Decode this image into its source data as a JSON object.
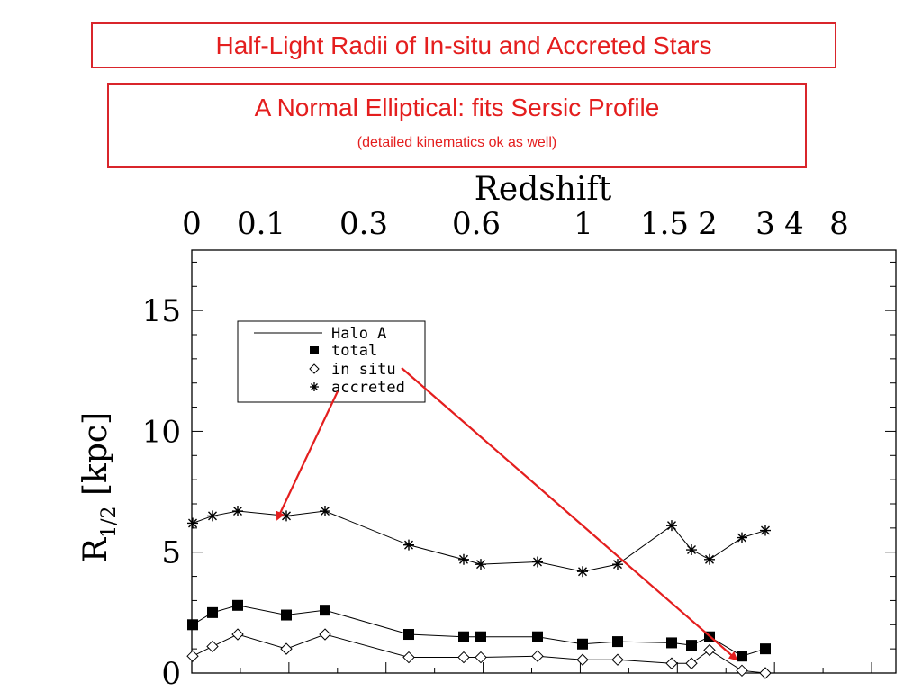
{
  "slide": {
    "title": "Half-Light Radii of In-situ and Accreted Stars",
    "subtitle": "A Normal Elliptical: fits Sersic Profile",
    "note": "(detailed kinematics ok as well)",
    "accent_color": "#e41e1e"
  },
  "chart_data": {
    "type": "line",
    "top_axis_label": "Redshift",
    "top_ticks": [
      "0",
      "0.1",
      "0.3",
      "0.6",
      "1",
      "1.5",
      "2",
      "3",
      "4",
      "8"
    ],
    "ylabel": "R1/2 [kpc]",
    "ylim": [
      0,
      17.5
    ],
    "yticks": [
      0,
      5,
      10,
      15
    ],
    "legend": {
      "placement": "upper-left",
      "entries": [
        {
          "symbol": "line",
          "label": "Halo A"
        },
        {
          "symbol": "filled-square",
          "label": "total"
        },
        {
          "symbol": "open-diamond",
          "label": "in situ"
        },
        {
          "symbol": "asterisk",
          "label": "accreted"
        }
      ]
    },
    "redshift": [
      0,
      0.03,
      0.07,
      0.14,
      0.22,
      0.43,
      0.57,
      0.62,
      0.8,
      1.08,
      1.3,
      1.58,
      1.8,
      2.05,
      2.6,
      3.1
    ],
    "series": [
      {
        "name": "accreted",
        "marker": "asterisk",
        "values": [
          6.2,
          6.5,
          6.7,
          6.5,
          6.7,
          5.3,
          4.7,
          4.5,
          4.6,
          4.2,
          4.5,
          6.1,
          5.1,
          4.7,
          5.6,
          5.9
        ]
      },
      {
        "name": "total",
        "marker": "filled-square",
        "values": [
          2.0,
          2.5,
          2.8,
          2.4,
          2.6,
          1.6,
          1.5,
          1.5,
          1.5,
          1.2,
          1.3,
          1.25,
          1.15,
          1.5,
          0.7,
          1.0
        ]
      },
      {
        "name": "in situ",
        "marker": "open-diamond",
        "values": [
          0.7,
          1.1,
          1.6,
          1.0,
          1.6,
          0.65,
          0.65,
          0.65,
          0.7,
          0.55,
          0.55,
          0.4,
          0.4,
          0.95,
          0.1,
          0.0
        ]
      }
    ],
    "annotations": [
      {
        "type": "arrow",
        "color": "#e41e1e",
        "from": "legend accreted entry",
        "to": "accreted series near z=0.14"
      },
      {
        "type": "arrow",
        "color": "#e41e1e",
        "from": "legend in situ entry",
        "to": "in situ series near z=2.6"
      }
    ]
  }
}
